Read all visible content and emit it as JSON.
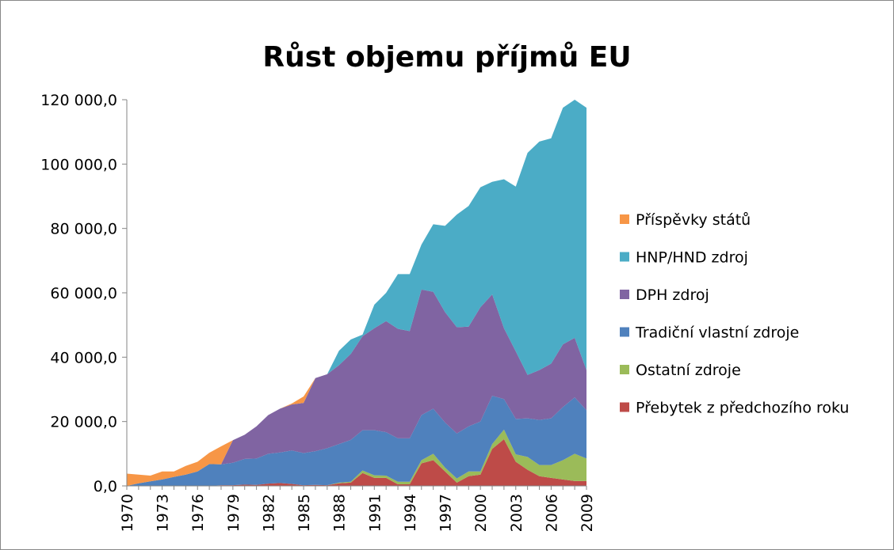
{
  "chart_data": {
    "type": "stacked_area",
    "title": "Růst objemu příjmů EU",
    "categories": [
      "1970",
      null,
      null,
      "1973",
      null,
      null,
      "1976",
      null,
      null,
      "1979",
      null,
      null,
      "1982",
      null,
      null,
      "1985",
      null,
      null,
      "1988",
      null,
      null,
      "1991",
      null,
      null,
      "1994",
      null,
      null,
      "1997",
      null,
      null,
      "2000",
      null,
      null,
      "2003",
      null,
      null,
      "2006",
      null,
      null,
      "2009"
    ],
    "series": [
      {
        "name": "Přebytek z předchozího roku",
        "color": "#be4b48",
        "values": [
          0,
          0,
          0,
          0,
          0,
          0,
          0,
          0,
          200,
          200,
          400,
          300,
          700,
          900,
          600,
          200,
          300,
          200,
          800,
          1000,
          4000,
          2500,
          2500,
          500,
          500,
          7000,
          8000,
          4500,
          1000,
          3000,
          3500,
          11500,
          14500,
          7500,
          5000,
          3000,
          2500,
          2000,
          1500,
          1500
        ]
      },
      {
        "name": "Ostatní zdroje",
        "color": "#9bbb59",
        "values": [
          0,
          0,
          0,
          0,
          0,
          0,
          0,
          0,
          0,
          0,
          0,
          0,
          0,
          0,
          0,
          0,
          0,
          0,
          200,
          300,
          800,
          800,
          700,
          800,
          800,
          1000,
          2000,
          1200,
          1300,
          1500,
          1000,
          1500,
          3000,
          2300,
          4000,
          3500,
          4000,
          6000,
          8500,
          7000
        ]
      },
      {
        "name": "Tradiční vlastní zdroje",
        "color": "#4f81bd",
        "values": [
          0,
          800,
          1400,
          2000,
          2800,
          3500,
          4500,
          6800,
          6500,
          7000,
          8000,
          8200,
          9300,
          9500,
          10400,
          10000,
          10500,
          11500,
          12000,
          13000,
          12500,
          14000,
          13500,
          13500,
          13500,
          14000,
          14000,
          14000,
          14000,
          14000,
          15500,
          15000,
          9500,
          11000,
          12000,
          14000,
          14500,
          16500,
          17500,
          15000
        ]
      },
      {
        "name": "DPH zdroj",
        "color": "#8064a2",
        "values": [
          0,
          0,
          0,
          0,
          0,
          0,
          0,
          0,
          0,
          7000,
          7500,
          10000,
          12000,
          13600,
          14300,
          15600,
          22700,
          23000,
          24500,
          26700,
          29200,
          31700,
          34500,
          34000,
          33300,
          39000,
          36300,
          34300,
          33000,
          31000,
          35500,
          31500,
          22000,
          21000,
          13500,
          15500,
          17000,
          19500,
          18500,
          12500
        ]
      },
      {
        "name": "HNP/HND zdroj",
        "color": "#4bacc6",
        "values": [
          0,
          0,
          0,
          0,
          0,
          0,
          0,
          0,
          0,
          0,
          0,
          0,
          0,
          0,
          0,
          0,
          0,
          0,
          4500,
          4500,
          500,
          7300,
          8800,
          17000,
          17700,
          14000,
          21000,
          26800,
          35000,
          37500,
          37300,
          35000,
          46300,
          51200,
          69000,
          71000,
          70000,
          73500,
          74000,
          81500
        ]
      },
      {
        "name": "Příspěvky států",
        "color": "#f79646",
        "values": [
          3800,
          2700,
          1800,
          2500,
          1700,
          2700,
          3000,
          3500,
          5600,
          0,
          0,
          0,
          0,
          0,
          300,
          2000,
          0,
          0,
          0,
          0,
          0,
          0,
          0,
          0,
          0,
          0,
          0,
          0,
          0,
          0,
          0,
          0,
          0,
          0,
          0,
          0,
          0,
          0,
          0,
          0
        ]
      }
    ],
    "ylim": [
      0,
      120000
    ],
    "yticks": [
      {
        "value": 0,
        "label": "0,0"
      },
      {
        "value": 20000,
        "label": "20 000,0"
      },
      {
        "value": 40000,
        "label": "40 000,0"
      },
      {
        "value": 60000,
        "label": "60 000,0"
      },
      {
        "value": 80000,
        "label": "80 000,0"
      },
      {
        "value": 100000,
        "label": "100 000,0"
      },
      {
        "value": 120000,
        "label": "120 000,0"
      }
    ],
    "grid": false,
    "legend": "right"
  }
}
